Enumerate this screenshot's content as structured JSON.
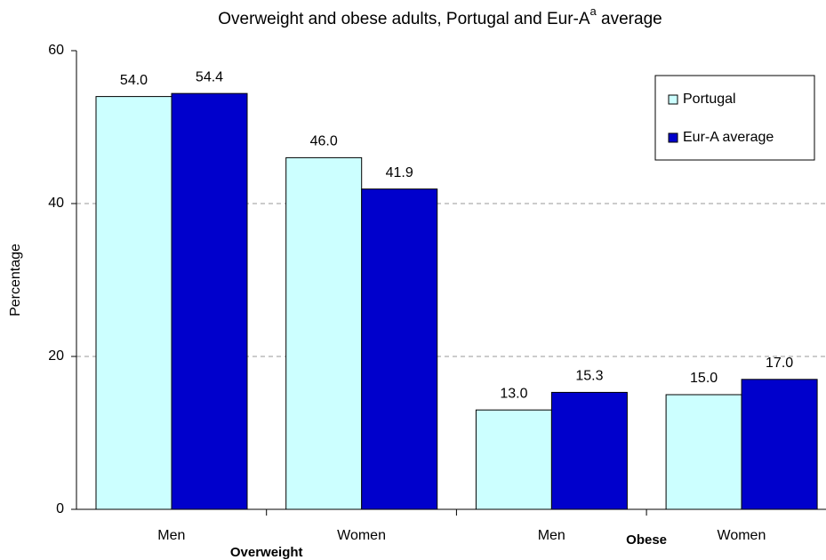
{
  "chart_data": {
    "type": "bar",
    "title": "Overweight and obese adults, Portugal and Eur-A",
    "title_superscript": "a",
    "title_suffix": " average",
    "y_label": "Percentage",
    "categories": [
      "Men",
      "Women",
      "Men",
      "Women"
    ],
    "groups": [
      "Overweight",
      "Obese"
    ],
    "series": [
      {
        "name": "Portugal",
        "color": "#ccffff",
        "values": [
          54,
          46,
          13,
          15
        ],
        "value_labels": [
          "54.0",
          "46.0",
          "13.0",
          "15.0"
        ]
      },
      {
        "name": "Eur-A average",
        "color": "#0000cc",
        "values": [
          54.4,
          41.9,
          15.3,
          17
        ],
        "value_labels": [
          "54.4",
          "41.9",
          "15.3",
          "17.0"
        ]
      }
    ],
    "ylim": [
      0,
      60
    ],
    "yticks": [
      0,
      20,
      40,
      60
    ],
    "grid": true,
    "legend": "top-right"
  }
}
